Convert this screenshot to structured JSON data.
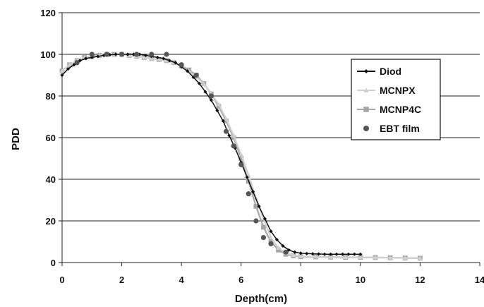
{
  "chart_data": {
    "type": "line",
    "xlabel": "Depth(cm)",
    "ylabel": "PDD",
    "xlim": [
      0,
      14
    ],
    "ylim": [
      0,
      120
    ],
    "xticks": [
      "0",
      "2",
      "4",
      "6",
      "8",
      "10",
      "12",
      "14"
    ],
    "yticks": [
      "0",
      "20",
      "40",
      "60",
      "80",
      "100",
      "120"
    ],
    "grid": "horizontal",
    "legend_position": "right",
    "series": [
      {
        "name": "Diod",
        "color": "#111111",
        "marker": "diamond",
        "line": true,
        "x": [
          0,
          0.2,
          0.4,
          0.6,
          0.8,
          1.0,
          1.2,
          1.4,
          1.6,
          1.8,
          2.0,
          2.2,
          2.4,
          2.6,
          2.8,
          3.0,
          3.2,
          3.4,
          3.6,
          3.8,
          4.0,
          4.2,
          4.4,
          4.6,
          4.8,
          5.0,
          5.2,
          5.4,
          5.6,
          5.8,
          6.0,
          6.2,
          6.4,
          6.6,
          6.8,
          7.0,
          7.2,
          7.4,
          7.6,
          7.8,
          8.0,
          8.2,
          8.4,
          8.6,
          8.8,
          9.0,
          9.2,
          9.4,
          9.6,
          9.8,
          10.0
        ],
        "y": [
          90,
          93,
          95,
          97,
          98,
          98.5,
          99,
          99.5,
          99.8,
          100,
          100,
          100,
          100,
          100,
          99.5,
          99,
          98.5,
          98,
          97,
          96,
          94,
          92,
          89,
          86,
          82,
          78,
          73,
          68,
          61,
          55,
          48,
          41,
          34,
          27,
          21,
          15,
          11,
          8,
          6,
          5,
          4.5,
          4.3,
          4.2,
          4.1,
          4,
          4,
          4,
          4,
          4,
          4,
          4
        ]
      },
      {
        "name": "MCNPX",
        "color": "#d0d0d0",
        "marker": "triangle",
        "line": true,
        "x": [
          0,
          0.25,
          0.5,
          0.75,
          1.0,
          1.25,
          1.5,
          1.75,
          2.0,
          2.25,
          2.5,
          2.75,
          3.0,
          3.25,
          3.5,
          3.75,
          4.0,
          4.25,
          4.5,
          4.75,
          5.0,
          5.25,
          5.5,
          5.75,
          6.0,
          6.25,
          6.5,
          6.75,
          7.0,
          7.25,
          7.5,
          7.75,
          8.0,
          8.5,
          9.0,
          9.5,
          10.0,
          10.5,
          11.0,
          11.5,
          12.0
        ],
        "y": [
          92,
          95,
          97,
          98.5,
          99,
          99.5,
          100,
          100,
          100,
          99.5,
          99,
          98.5,
          98,
          97.5,
          97,
          96,
          94,
          92,
          89,
          86,
          81,
          76,
          69,
          61,
          52,
          42,
          31,
          21,
          12,
          7,
          4.5,
          3.5,
          3,
          2.8,
          2.7,
          2.6,
          2.5,
          2.4,
          2.3,
          2.2,
          2.1
        ]
      },
      {
        "name": "MCNP4C",
        "color": "#a6a6a6",
        "marker": "square",
        "line": true,
        "x": [
          0,
          0.25,
          0.5,
          0.75,
          1.0,
          1.25,
          1.5,
          1.75,
          2.0,
          2.25,
          2.5,
          2.75,
          3.0,
          3.25,
          3.5,
          3.75,
          4.0,
          4.25,
          4.5,
          4.75,
          5.0,
          5.25,
          5.5,
          5.75,
          6.0,
          6.25,
          6.5,
          6.75,
          7.0,
          7.25,
          7.5,
          7.75,
          8.0,
          8.5,
          9.0,
          9.5,
          10.0,
          10.5,
          11.0,
          11.5,
          12.0
        ],
        "y": [
          92,
          95,
          97,
          98.5,
          99,
          99.5,
          100,
          100,
          100,
          99.5,
          99,
          98.5,
          98,
          97.5,
          97,
          96,
          94.5,
          92.5,
          90,
          86,
          81,
          75,
          68,
          60,
          50,
          39,
          27,
          17,
          10,
          6,
          4,
          3.2,
          2.8,
          2.7,
          2.6,
          2.5,
          2.5,
          2.4,
          2.3,
          2.2,
          2.1
        ]
      },
      {
        "name": "EBT film",
        "color": "#555555",
        "marker": "circle",
        "line": false,
        "x": [
          0.5,
          1.0,
          1.5,
          2.0,
          2.5,
          3.0,
          3.5,
          4.0,
          4.5,
          5.0,
          5.5,
          5.75,
          6.0,
          6.25,
          6.5,
          6.75,
          7.0,
          7.5
        ],
        "y": [
          96,
          100,
          100,
          100,
          100,
          100,
          100,
          95,
          90,
          80,
          63,
          56,
          47,
          33,
          20,
          12,
          9,
          5
        ]
      }
    ]
  }
}
